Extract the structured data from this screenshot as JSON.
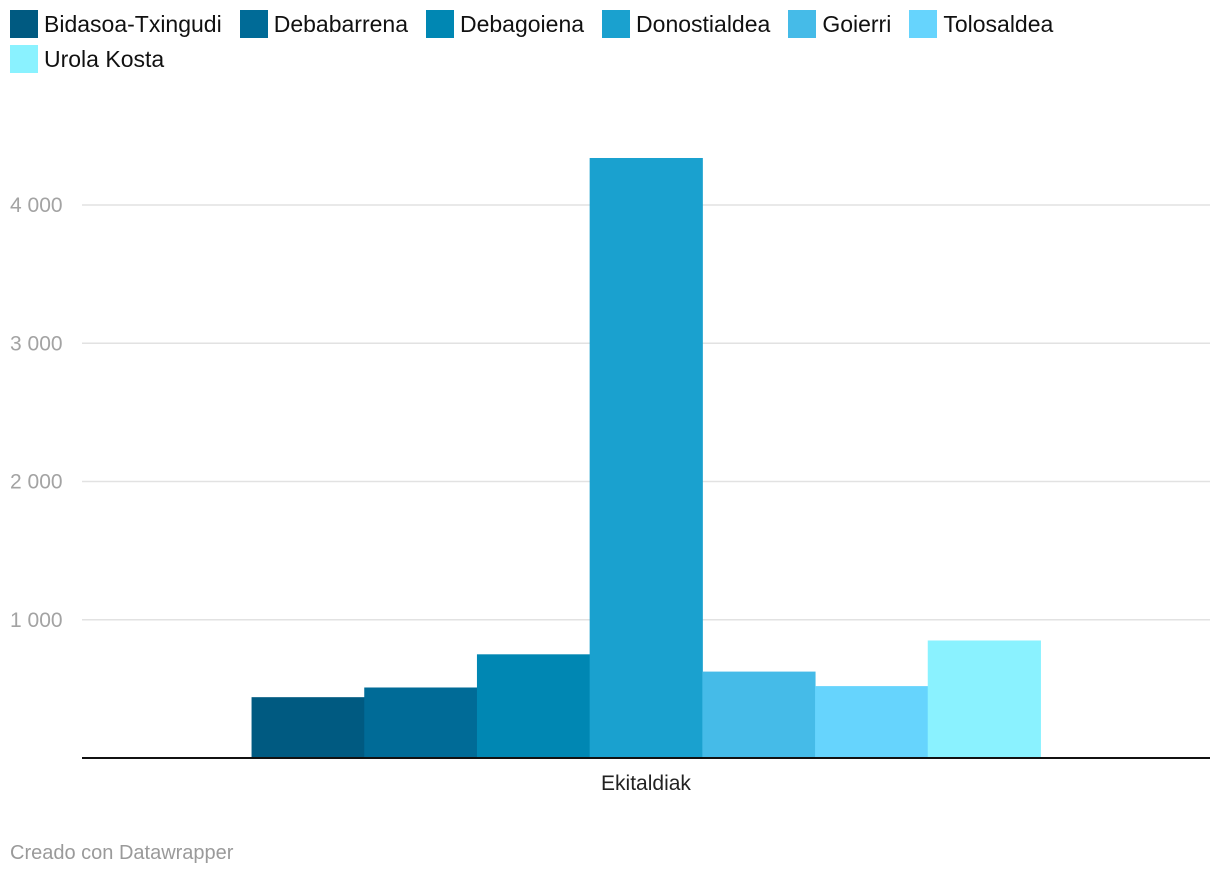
{
  "chart_data": {
    "type": "bar",
    "categories": [
      "Ekitaldiak"
    ],
    "series": [
      {
        "name": "Bidasoa-Txingudi",
        "values": [
          440
        ],
        "color": "#005a81"
      },
      {
        "name": "Debabarrena",
        "values": [
          510
        ],
        "color": "#006b97"
      },
      {
        "name": "Debagoiena",
        "values": [
          750
        ],
        "color": "#0087b3"
      },
      {
        "name": "Donostialdea",
        "values": [
          4340
        ],
        "color": "#1aa1cf"
      },
      {
        "name": "Goierri",
        "values": [
          625
        ],
        "color": "#45bbe8"
      },
      {
        "name": "Tolosaldea",
        "values": [
          520
        ],
        "color": "#66d4fd"
      },
      {
        "name": "Urola Kosta",
        "values": [
          850
        ],
        "color": "#8af2ff"
      }
    ],
    "y_ticks": [
      {
        "value": 1000,
        "label": "1 000"
      },
      {
        "value": 2000,
        "label": "2 000"
      },
      {
        "value": 3000,
        "label": "3 000"
      },
      {
        "value": 4000,
        "label": "4 000"
      }
    ],
    "ylim": [
      0,
      4500
    ],
    "grid": true,
    "legend_position": "top"
  },
  "credit": "Creado con Datawrapper"
}
